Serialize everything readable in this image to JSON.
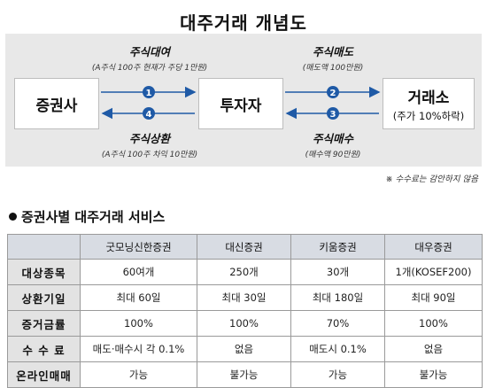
{
  "title": "대주거래 개념도",
  "diagram": {
    "broker": "증권사",
    "investor": "투자자",
    "exchange": "거래소",
    "exchange_sub": "(주가 10%하락)",
    "flows": [
      {
        "num": "1",
        "label": "주식대여",
        "note": "(A주식 100주 현재가 주당 1만원)"
      },
      {
        "num": "2",
        "label": "주식매도",
        "note": "(매도액 100만원)"
      },
      {
        "num": "3",
        "label": "주식매수",
        "note": "(매수액 90만원)"
      },
      {
        "num": "4",
        "label": "주식상환",
        "note": "(A주식 100주 차익 10만원)"
      }
    ],
    "footnote": "※ 수수료는 감안하지 않음"
  },
  "section_title": "증권사별 대주거래 서비스",
  "table": {
    "headers": [
      "",
      "굿모닝신한증권",
      "대신증권",
      "키움증권",
      "대우증권"
    ],
    "rows": [
      {
        "label": "대상종목",
        "cells": [
          "60여개",
          "250개",
          "30개",
          "1개(KOSEF200)"
        ]
      },
      {
        "label": "상환기일",
        "cells": [
          "최대 60일",
          "최대 30일",
          "최대 180일",
          "최대 90일"
        ]
      },
      {
        "label": "증거금률",
        "cells": [
          "100%",
          "100%",
          "70%",
          "100%"
        ]
      },
      {
        "label": "수 수 료",
        "cells": [
          "매도·매수시 각 0.1%",
          "없음",
          "매도시 0.1%",
          "없음"
        ]
      },
      {
        "label": "온라인매매",
        "cells": [
          "가능",
          "불가능",
          "가능",
          "불가능"
        ]
      }
    ]
  },
  "colors": {
    "arrow": "#1f5aa6",
    "badge": "#1f5aa6",
    "diagram_bg": "#e8e8e8",
    "header_bg": "#d8dce3"
  }
}
